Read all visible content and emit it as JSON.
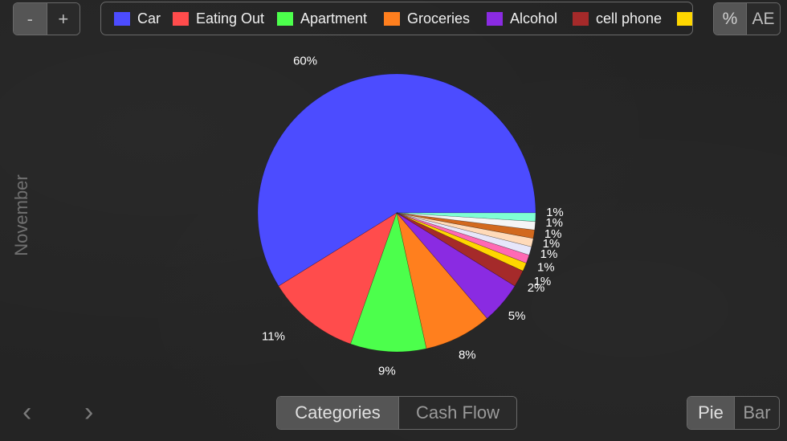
{
  "toolbar": {
    "zoom_out_label": "-",
    "zoom_in_label": "+",
    "percent_label": "%",
    "amount_label": "AE"
  },
  "legend": [
    {
      "label": "Car",
      "color": "#4c4cff"
    },
    {
      "label": "Eating Out",
      "color": "#ff4c4c"
    },
    {
      "label": "Apartment",
      "color": "#4cff4c"
    },
    {
      "label": "Groceries",
      "color": "#ff7f1e"
    },
    {
      "label": "Alcohol",
      "color": "#8a2be2"
    },
    {
      "label": "cell phone",
      "color": "#a52a2a"
    },
    {
      "label": "",
      "color": "#ffd700"
    }
  ],
  "side_label": "November",
  "chart_data": {
    "type": "pie",
    "labels": [
      "Car",
      "Eating Out",
      "Apartment",
      "Groceries",
      "Alcohol",
      "cell phone",
      "",
      "",
      "",
      "",
      "",
      "",
      ""
    ],
    "values": [
      60,
      11,
      9,
      8,
      5,
      2,
      1,
      1,
      1,
      1,
      1,
      1,
      1
    ],
    "value_labels": [
      "60%",
      "11%",
      "9%",
      "8%",
      "5%",
      "2%",
      "1%",
      "1%",
      "1%",
      "1%",
      "1%",
      "1%",
      "1%"
    ],
    "colors": [
      "#4c4cff",
      "#ff4c4c",
      "#4cff4c",
      "#ff7f1e",
      "#8a2be2",
      "#a52a2a",
      "#ffd700",
      "#ff69b4",
      "#e6e6fa",
      "#ffdab9",
      "#d2691e",
      "#f5f5f5",
      "#7fffd4"
    ]
  },
  "bottom_bar": {
    "prev_label": "‹",
    "next_label": "›",
    "categories_label": "Categories",
    "cash_flow_label": "Cash Flow",
    "pie_label": "Pie",
    "bar_label": "Bar"
  }
}
